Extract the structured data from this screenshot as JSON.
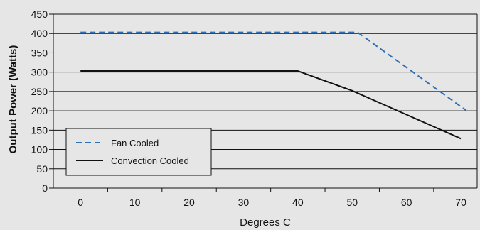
{
  "chart_data": {
    "type": "line",
    "title": "",
    "xlabel": "Degrees C",
    "ylabel": "Output Power (Watts)",
    "x_ticks": [
      0,
      10,
      20,
      30,
      40,
      50,
      60,
      70
    ],
    "y_ticks": [
      0,
      50,
      100,
      150,
      200,
      250,
      300,
      350,
      400,
      450
    ],
    "xlim": [
      -5,
      73
    ],
    "ylim": [
      0,
      450
    ],
    "grid": "horizontal",
    "legend_position": "bottom-left",
    "series": [
      {
        "name": "Fan Cooled",
        "style": "dashed",
        "color": "#2f6fb5",
        "x": [
          0,
          51,
          71
        ],
        "y": [
          403,
          403,
          201
        ]
      },
      {
        "name": "Convection Cooled",
        "style": "solid",
        "color": "#111111",
        "x": [
          0,
          40,
          50,
          70
        ],
        "y": [
          303,
          303,
          252,
          128
        ]
      }
    ]
  }
}
